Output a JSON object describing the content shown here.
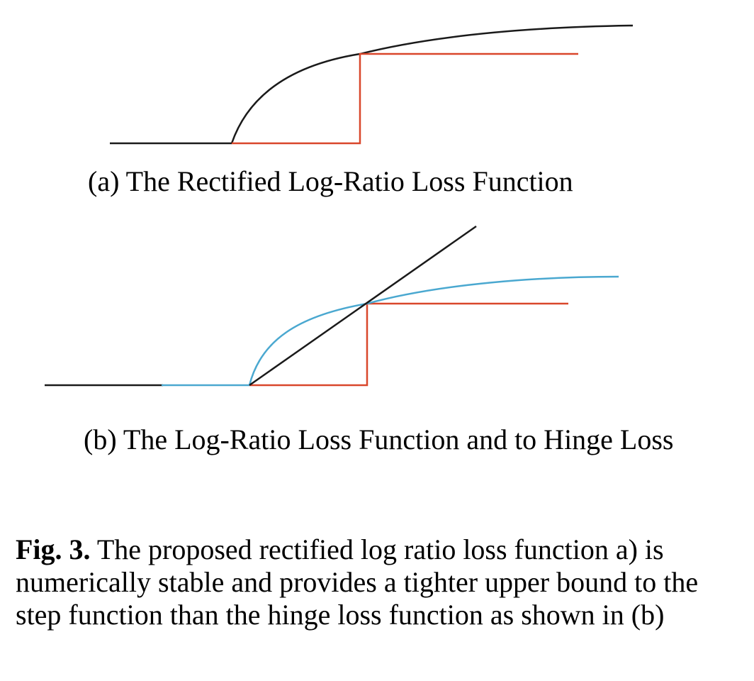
{
  "colors": {
    "black": "#1a1a1a",
    "red": "#d9472b",
    "blue": "#4aa8d0"
  },
  "subfigure_a": {
    "caption": "(a) The Rectified Log-Ratio Loss Function",
    "curves": [
      "black-curve",
      "red-step"
    ]
  },
  "subfigure_b": {
    "caption": "(b) The Log-Ratio Loss Function and to Hinge Loss",
    "curves": [
      "black-hinge-line",
      "blue-curve",
      "red-step"
    ]
  },
  "figure_caption": {
    "label": "Fig. 3.",
    "text": "The proposed rectified log ratio loss function a) is numerically stable and provides a tighter upper bound to the step function than the hinge loss function as shown in (b)"
  }
}
